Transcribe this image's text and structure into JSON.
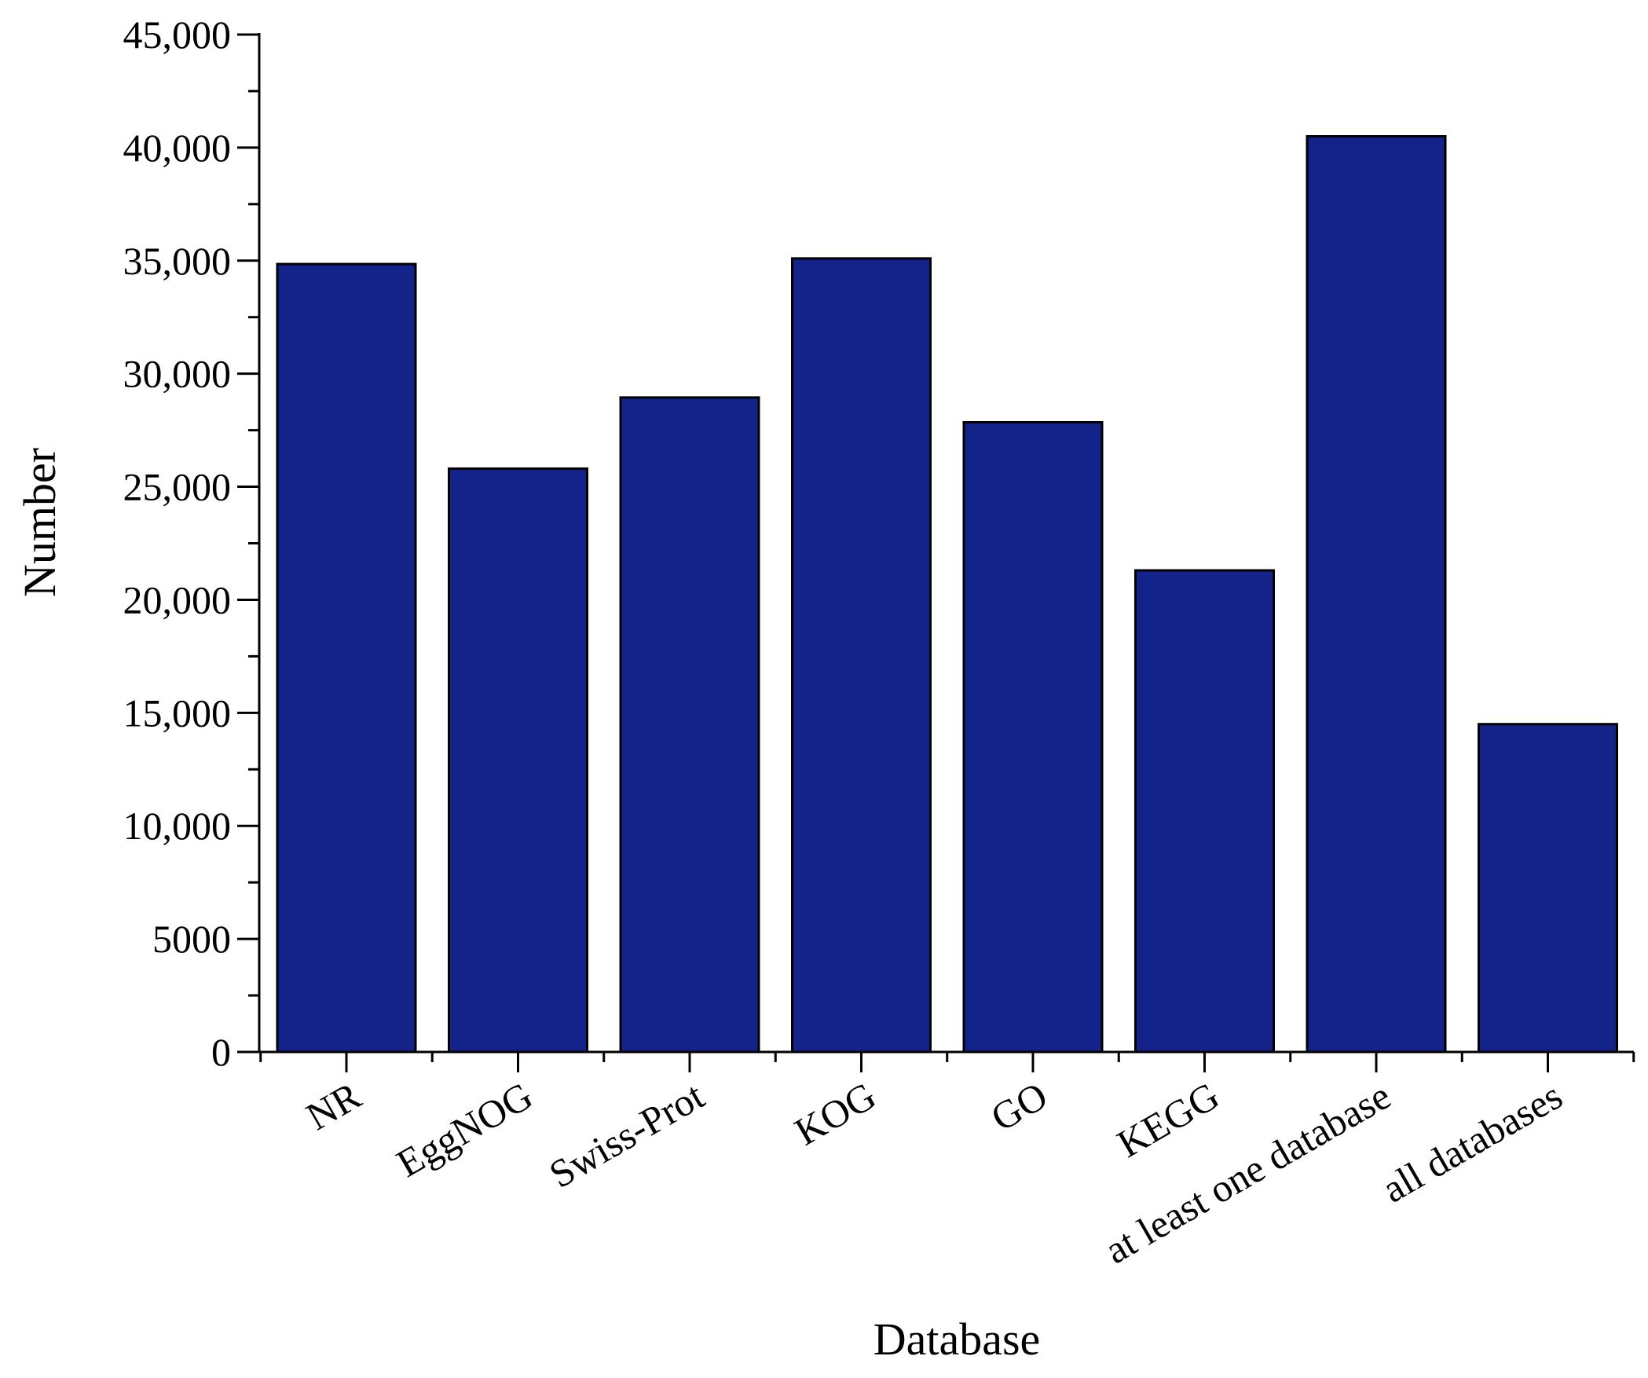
{
  "chart_data": {
    "type": "bar",
    "xlabel": "Database",
    "ylabel": "Number",
    "categories": [
      "NR",
      "EggNOG",
      "Swiss-Prot",
      "KOG",
      "GO",
      "KEGG",
      "at least one database",
      "all databases"
    ],
    "values": [
      34850,
      25800,
      28950,
      35100,
      27850,
      21300,
      40500,
      14500
    ],
    "ylim": [
      0,
      45000
    ],
    "yticks": [
      0,
      5000,
      10000,
      15000,
      20000,
      25000,
      30000,
      35000,
      40000,
      45000
    ],
    "ytick_labels": [
      "0",
      "5000",
      "10,000",
      "15,000",
      "20,000",
      "25,000",
      "30,000",
      "35,000",
      "40,000",
      "45,000"
    ],
    "grid": false,
    "colors": {
      "bar_fill": "#13238a",
      "bar_edge": "#000000",
      "axis": "#000000"
    }
  }
}
